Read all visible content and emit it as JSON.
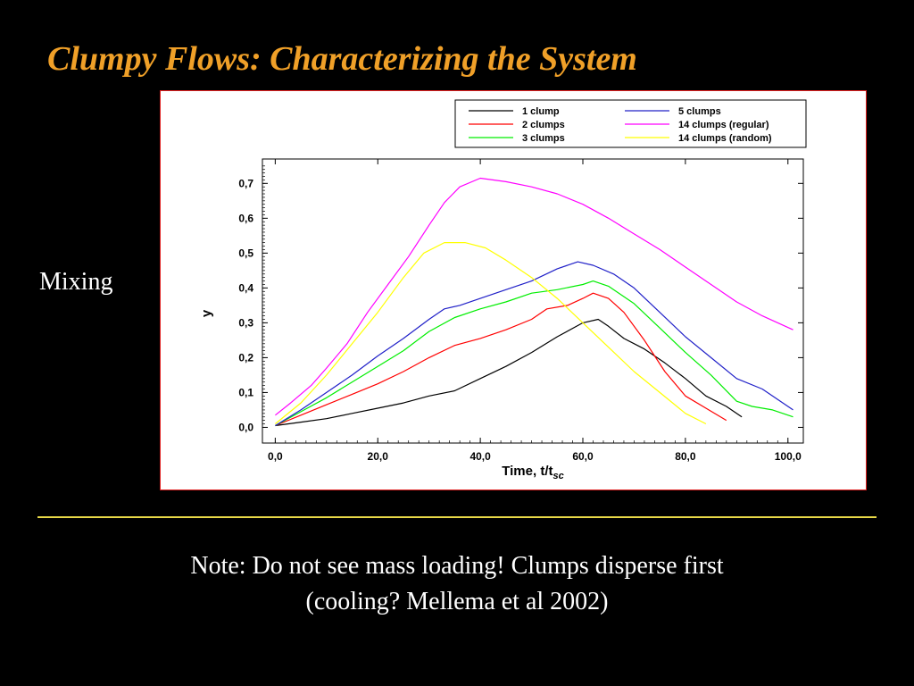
{
  "slide": {
    "title": "Clumpy Flows: Characterizing the System",
    "side_label": "Mixing",
    "note_line1": "Note: Do not see mass loading! Clumps disperse first",
    "note_line2": "(cooling? Mellema et al 2002)",
    "title_color": "#F0A028",
    "divider_color": "#E8D848",
    "frame_border_color": "#E02020"
  },
  "chart_data": {
    "type": "line",
    "title": "",
    "xlabel": "Time, t/t",
    "xlabel_subscript": "sc",
    "ylabel": "y",
    "xlim": [
      -2.5,
      103
    ],
    "ylim": [
      -0.045,
      0.77
    ],
    "xticks": [
      0,
      20,
      40,
      60,
      80,
      100
    ],
    "xtick_labels": [
      "0,0",
      "20,0",
      "40,0",
      "60,0",
      "80,0",
      "100,0"
    ],
    "yticks": [
      0,
      0.1,
      0.2,
      0.3,
      0.4,
      0.5,
      0.6,
      0.7
    ],
    "ytick_labels": [
      "0,0",
      "0,1",
      "0,2",
      "0,3",
      "0,4",
      "0,5",
      "0,6",
      "0,7"
    ],
    "grid": false,
    "legend_position": "top-right",
    "series": [
      {
        "name": "1 clump",
        "color": "#000000",
        "points": [
          [
            0,
            0.005
          ],
          [
            5,
            0.015
          ],
          [
            10,
            0.025
          ],
          [
            15,
            0.04
          ],
          [
            20,
            0.055
          ],
          [
            25,
            0.07
          ],
          [
            30,
            0.09
          ],
          [
            35,
            0.105
          ],
          [
            40,
            0.14
          ],
          [
            45,
            0.175
          ],
          [
            50,
            0.215
          ],
          [
            55,
            0.26
          ],
          [
            60,
            0.3
          ],
          [
            63,
            0.31
          ],
          [
            65,
            0.29
          ],
          [
            68,
            0.255
          ],
          [
            72,
            0.225
          ],
          [
            76,
            0.185
          ],
          [
            80,
            0.14
          ],
          [
            84,
            0.09
          ],
          [
            88,
            0.06
          ],
          [
            91,
            0.03
          ]
        ]
      },
      {
        "name": "2 clumps",
        "color": "#FF0000",
        "points": [
          [
            0,
            0.005
          ],
          [
            5,
            0.035
          ],
          [
            10,
            0.065
          ],
          [
            15,
            0.095
          ],
          [
            20,
            0.125
          ],
          [
            25,
            0.16
          ],
          [
            30,
            0.2
          ],
          [
            35,
            0.235
          ],
          [
            40,
            0.255
          ],
          [
            45,
            0.28
          ],
          [
            50,
            0.31
          ],
          [
            53,
            0.34
          ],
          [
            57,
            0.35
          ],
          [
            60,
            0.37
          ],
          [
            62,
            0.385
          ],
          [
            65,
            0.37
          ],
          [
            68,
            0.33
          ],
          [
            72,
            0.25
          ],
          [
            76,
            0.16
          ],
          [
            80,
            0.09
          ],
          [
            84,
            0.055
          ],
          [
            88,
            0.02
          ]
        ]
      },
      {
        "name": "3 clumps",
        "color": "#00EE00",
        "points": [
          [
            0,
            0.005
          ],
          [
            5,
            0.045
          ],
          [
            10,
            0.085
          ],
          [
            15,
            0.13
          ],
          [
            20,
            0.175
          ],
          [
            25,
            0.22
          ],
          [
            30,
            0.275
          ],
          [
            35,
            0.315
          ],
          [
            40,
            0.34
          ],
          [
            45,
            0.36
          ],
          [
            50,
            0.385
          ],
          [
            55,
            0.395
          ],
          [
            60,
            0.41
          ],
          [
            62,
            0.42
          ],
          [
            65,
            0.405
          ],
          [
            70,
            0.355
          ],
          [
            75,
            0.285
          ],
          [
            80,
            0.215
          ],
          [
            85,
            0.15
          ],
          [
            90,
            0.075
          ],
          [
            93,
            0.06
          ],
          [
            97,
            0.05
          ],
          [
            101,
            0.03
          ]
        ]
      },
      {
        "name": "5 clumps",
        "color": "#2020C8",
        "points": [
          [
            0,
            0.005
          ],
          [
            5,
            0.05
          ],
          [
            10,
            0.1
          ],
          [
            15,
            0.15
          ],
          [
            20,
            0.205
          ],
          [
            25,
            0.255
          ],
          [
            30,
            0.31
          ],
          [
            33,
            0.34
          ],
          [
            36,
            0.35
          ],
          [
            40,
            0.37
          ],
          [
            45,
            0.395
          ],
          [
            50,
            0.42
          ],
          [
            55,
            0.455
          ],
          [
            59,
            0.475
          ],
          [
            62,
            0.465
          ],
          [
            66,
            0.44
          ],
          [
            70,
            0.4
          ],
          [
            75,
            0.33
          ],
          [
            80,
            0.26
          ],
          [
            85,
            0.2
          ],
          [
            90,
            0.14
          ],
          [
            95,
            0.11
          ],
          [
            101,
            0.05
          ]
        ]
      },
      {
        "name": "14 clumps (regular)",
        "color": "#FF00FF",
        "points": [
          [
            0,
            0.035
          ],
          [
            3,
            0.07
          ],
          [
            7,
            0.12
          ],
          [
            10,
            0.17
          ],
          [
            14,
            0.24
          ],
          [
            18,
            0.33
          ],
          [
            22,
            0.41
          ],
          [
            26,
            0.49
          ],
          [
            30,
            0.58
          ],
          [
            33,
            0.645
          ],
          [
            36,
            0.69
          ],
          [
            40,
            0.715
          ],
          [
            45,
            0.705
          ],
          [
            50,
            0.69
          ],
          [
            55,
            0.67
          ],
          [
            60,
            0.64
          ],
          [
            65,
            0.6
          ],
          [
            70,
            0.555
          ],
          [
            75,
            0.51
          ],
          [
            80,
            0.46
          ],
          [
            85,
            0.41
          ],
          [
            90,
            0.36
          ],
          [
            95,
            0.32
          ],
          [
            101,
            0.28
          ]
        ]
      },
      {
        "name": "14 clumps (random)",
        "color": "#FFFF00",
        "points": [
          [
            0,
            0.01
          ],
          [
            5,
            0.07
          ],
          [
            10,
            0.15
          ],
          [
            15,
            0.24
          ],
          [
            20,
            0.33
          ],
          [
            25,
            0.43
          ],
          [
            29,
            0.5
          ],
          [
            33,
            0.53
          ],
          [
            37,
            0.53
          ],
          [
            41,
            0.515
          ],
          [
            45,
            0.48
          ],
          [
            50,
            0.43
          ],
          [
            55,
            0.37
          ],
          [
            60,
            0.3
          ],
          [
            65,
            0.23
          ],
          [
            70,
            0.16
          ],
          [
            75,
            0.1
          ],
          [
            80,
            0.04
          ],
          [
            84,
            0.01
          ]
        ]
      }
    ]
  }
}
